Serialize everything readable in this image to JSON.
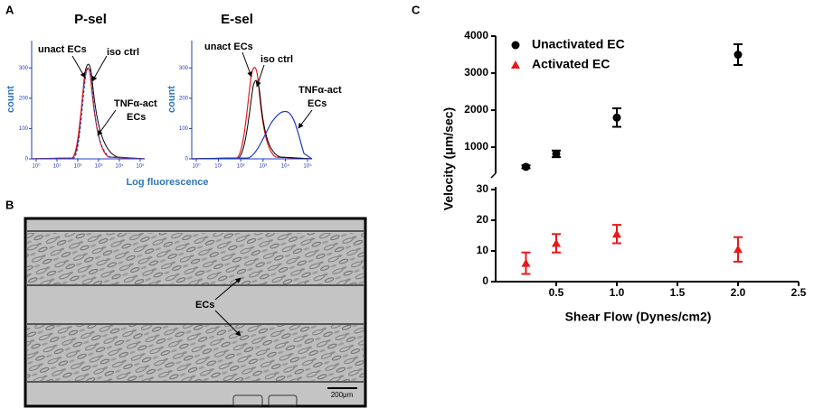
{
  "figure": {
    "panel_labels": [
      "A",
      "B",
      "C"
    ],
    "panel_a": {
      "x_label": "Log fluorescence",
      "plots": [
        {
          "title": "P-sel",
          "y_label": "count",
          "ylim": [
            0,
            390
          ],
          "yticks": [
            0,
            100,
            200,
            300
          ],
          "xtick_labels": [
            "10⁰",
            "10¹",
            "10²",
            "10³",
            "10⁴",
            "10⁵"
          ],
          "annotations": [
            "unact ECs",
            "iso ctrl",
            "TNFα-act",
            "ECs"
          ]
        },
        {
          "title": "E-sel",
          "y_label": "count",
          "ylim": [
            0,
            390
          ],
          "yticks": [
            0,
            100,
            200,
            300
          ],
          "xtick_labels": [
            "10⁰",
            "10¹",
            "10²",
            "10³",
            "10⁴",
            "10⁵"
          ],
          "annotations": [
            "unact ECs",
            "iso ctrl",
            "TNFα-act",
            "ECs"
          ]
        }
      ]
    },
    "panel_b": {
      "annotation": "ECs",
      "scale_bar": "200μm"
    }
  },
  "chart_data": {
    "type": "scatter",
    "x_label": "Shear Flow (Dynes/cm2)",
    "y_label": "Velocity (μm/sec)",
    "x": [
      0.25,
      0.5,
      1,
      2
    ],
    "series": [
      {
        "name": "Unactivated EC",
        "color": "#000000",
        "marker": "circle",
        "axis": "y2",
        "values": [
          470,
          820,
          1800,
          3500
        ],
        "errors": [
          40,
          90,
          250,
          280
        ]
      },
      {
        "name": "Activated EC",
        "color": "#e8191c",
        "marker": "triangle",
        "values": [
          6,
          12.5,
          15.5,
          10.5
        ],
        "errors": [
          3.5,
          3,
          3,
          4
        ]
      }
    ],
    "xlim": [
      0,
      2.5
    ],
    "xticks": [
      0.5,
      {
        "value": 1,
        "label": "1.0"
      },
      1.5,
      {
        "value": 2,
        "label": "2.0"
      },
      2.5
    ],
    "ylim": [
      0,
      30
    ],
    "yticks": [
      0,
      10,
      20,
      30
    ],
    "y2lim": [
      100,
      4000
    ],
    "y2ticks": [
      1000,
      2000,
      3000,
      4000
    ],
    "legend": "upper left"
  }
}
